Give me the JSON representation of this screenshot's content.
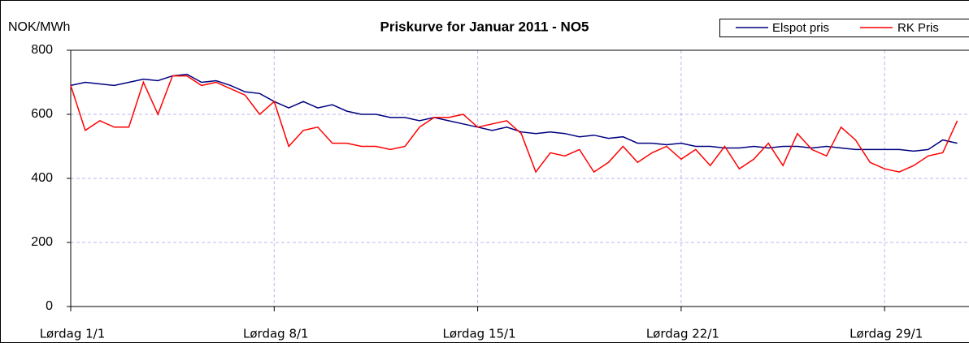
{
  "chart_data": {
    "type": "line",
    "title": "Priskurve for Januar 2011 - NO5",
    "y_label": "NOK/MWh",
    "x": [
      1,
      1.5,
      2,
      2.5,
      3,
      3.5,
      4,
      4.5,
      5,
      5.5,
      6,
      6.5,
      7,
      7.5,
      8,
      8.5,
      9,
      9.5,
      10,
      10.5,
      11,
      11.5,
      12,
      12.5,
      13,
      13.5,
      14,
      14.5,
      15,
      15.5,
      16,
      16.5,
      17,
      17.5,
      18,
      18.5,
      19,
      19.5,
      20,
      20.5,
      21,
      21.5,
      22,
      22.5,
      23,
      23.5,
      24,
      24.5,
      25,
      25.5,
      26,
      26.5,
      27,
      27.5,
      28,
      28.5,
      29,
      29.5,
      30,
      30.5,
      31,
      31.5
    ],
    "series": [
      {
        "name": "Elspot pris",
        "color": "#000080",
        "values": [
          690,
          700,
          695,
          690,
          700,
          710,
          705,
          720,
          725,
          700,
          705,
          690,
          670,
          665,
          640,
          620,
          640,
          620,
          630,
          610,
          600,
          600,
          590,
          590,
          580,
          590,
          580,
          570,
          560,
          550,
          560,
          545,
          540,
          545,
          540,
          530,
          535,
          525,
          530,
          510,
          510,
          505,
          510,
          500,
          500,
          495,
          495,
          500,
          495,
          500,
          500,
          495,
          500,
          495,
          490,
          490,
          490,
          490,
          485,
          490,
          520,
          510
        ]
      },
      {
        "name": "RK Pris",
        "color": "#ff0000",
        "values": [
          690,
          550,
          580,
          560,
          560,
          700,
          600,
          720,
          720,
          690,
          700,
          680,
          660,
          600,
          640,
          500,
          550,
          560,
          510,
          510,
          500,
          500,
          490,
          500,
          560,
          590,
          590,
          600,
          560,
          570,
          580,
          540,
          420,
          480,
          470,
          490,
          420,
          450,
          500,
          450,
          480,
          500,
          460,
          490,
          440,
          500,
          430,
          460,
          510,
          440,
          540,
          490,
          470,
          560,
          520,
          450,
          430,
          420,
          440,
          470,
          480,
          580
        ]
      }
    ],
    "xlim": [
      1,
      32
    ],
    "xticks": [
      {
        "value": 1,
        "label": "Lørdag 1/1"
      },
      {
        "value": 8,
        "label": "Lørdag 8/1"
      },
      {
        "value": 15,
        "label": "Lørdag 15/1"
      },
      {
        "value": 22,
        "label": "Lørdag 22/1"
      },
      {
        "value": 29,
        "label": "Lørdag 29/1"
      }
    ],
    "ylim": [
      0,
      800
    ],
    "yticks": [
      0,
      200,
      400,
      600,
      800
    ],
    "grid": true,
    "legend": "top-right"
  }
}
